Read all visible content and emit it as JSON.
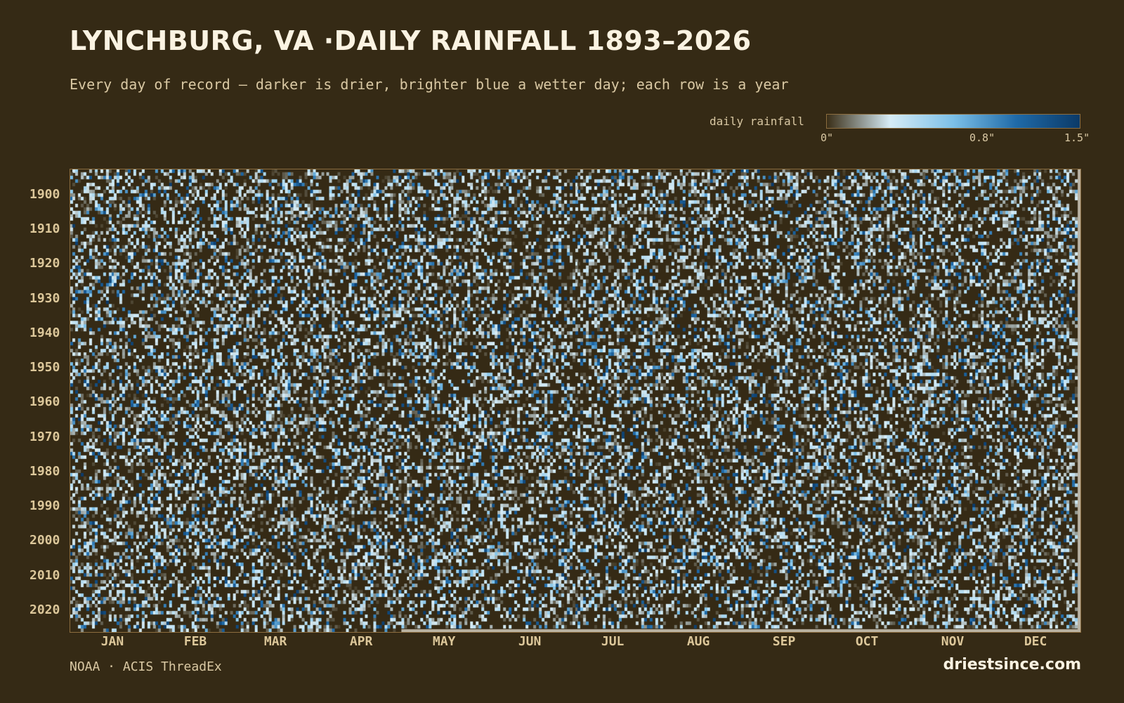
{
  "title": "LYNCHBURG, VA ·DAILY RAINFALL 1893–2026",
  "subtitle": "Every day of record — darker is drier, brighter blue a wetter day; each row is a year",
  "legend": {
    "label": "daily rainfall",
    "ticks": [
      "0\"",
      "0.8\"",
      "1.5\""
    ],
    "colors": [
      "#3a2e17",
      "#d6ecf6",
      "#7cc0e8",
      "#1f6aa8",
      "#0b3a68"
    ]
  },
  "footer": {
    "source": "NOAA · ACIS ThreadEx",
    "site": "driestsince.com"
  },
  "chart_data": {
    "type": "heatmap",
    "title": "LYNCHBURG, VA ·DAILY RAINFALL 1893–2026",
    "x_axis": "day of year",
    "y_axis": "year",
    "year_range": [
      1893,
      2026
    ],
    "day_range": [
      1,
      366
    ],
    "value_range": [
      0,
      1.5
    ],
    "value_unit": "\"",
    "year_ticks": [
      "1900",
      "1910",
      "1920",
      "1930",
      "1940",
      "1950",
      "1960",
      "1970",
      "1980",
      "1990",
      "2000",
      "2010",
      "2020"
    ],
    "month_ticks": [
      "JAN",
      "FEB",
      "MAR",
      "APR",
      "MAY",
      "JUN",
      "JUL",
      "AUG",
      "SEP",
      "OCT",
      "NOV",
      "DEC"
    ],
    "background": "#352a15",
    "empty_cell_color": "#352a15"
  }
}
